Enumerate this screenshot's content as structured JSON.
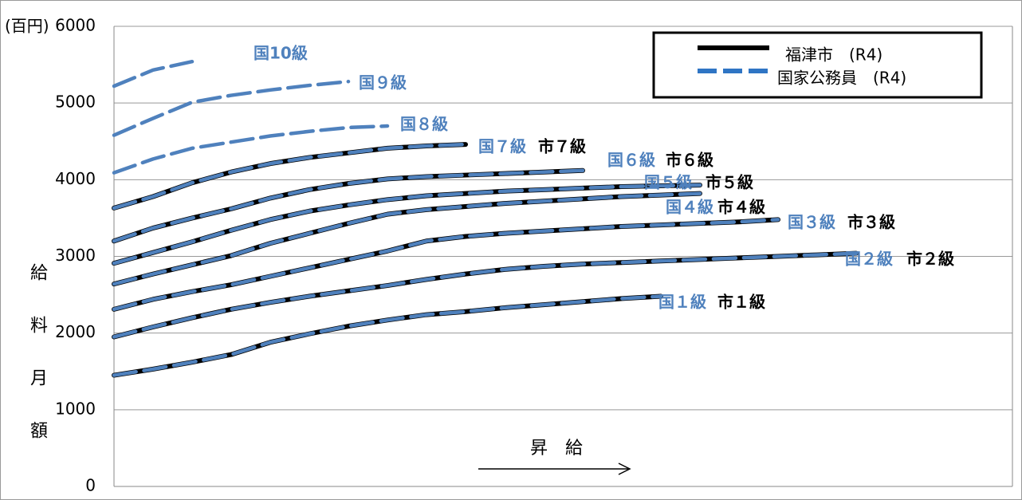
{
  "chart_data": {
    "type": "line",
    "y_unit_label": "(百円)",
    "y_label": "給料月額",
    "annotation": "昇　給",
    "categories": [
      null,
      null,
      null,
      null,
      null,
      null,
      null,
      null,
      null,
      null,
      null,
      null,
      null,
      null,
      null,
      null,
      null,
      null,
      null,
      null,
      null,
      null,
      null,
      null
    ],
    "ylim": [
      0,
      6000
    ],
    "yticks": [
      0,
      1000,
      2000,
      3000,
      4000,
      5000,
      6000
    ],
    "grid": true,
    "legend_position": "top-right",
    "legend": [
      {
        "name": "福津市　(R4)",
        "color": "#000000",
        "dashed": false
      },
      {
        "name": "国家公務員　(R4)",
        "color": "#4f81bd",
        "dashed": true
      }
    ],
    "series": [
      {
        "name": "市１級",
        "legend": 0,
        "values": [
          1450,
          1530,
          1620,
          1720,
          1880,
          1990,
          2090,
          2170,
          2240,
          2280,
          2330,
          2370,
          2410,
          2450,
          2480,
          null,
          null,
          null,
          null,
          null,
          null,
          null,
          null,
          null
        ]
      },
      {
        "name": "市２級",
        "legend": 0,
        "values": [
          1950,
          2080,
          2200,
          2310,
          2400,
          2480,
          2550,
          2620,
          2700,
          2770,
          2830,
          2870,
          2900,
          2920,
          2940,
          2960,
          2980,
          3000,
          3020,
          3040,
          null,
          null,
          null,
          null
        ]
      },
      {
        "name": "市３級",
        "legend": 0,
        "values": [
          2310,
          2440,
          2540,
          2630,
          2740,
          2850,
          2960,
          3070,
          3200,
          3260,
          3300,
          3330,
          3360,
          3390,
          3410,
          3430,
          3450,
          3480,
          null,
          null,
          null,
          null,
          null,
          null
        ]
      },
      {
        "name": "市４級",
        "legend": 0,
        "values": [
          2640,
          2770,
          2890,
          3010,
          3170,
          3300,
          3430,
          3550,
          3610,
          3650,
          3690,
          3720,
          3750,
          3780,
          3800,
          3820,
          null,
          null,
          null,
          null,
          null,
          null,
          null,
          null
        ]
      },
      {
        "name": "市５級",
        "legend": 0,
        "values": [
          2910,
          3050,
          3190,
          3340,
          3480,
          3590,
          3670,
          3740,
          3790,
          3820,
          3850,
          3870,
          3890,
          3910,
          3920,
          3930,
          null,
          null,
          null,
          null,
          null,
          null,
          null,
          null
        ]
      },
      {
        "name": "市６級",
        "legend": 0,
        "values": [
          3200,
          3370,
          3500,
          3620,
          3760,
          3870,
          3950,
          4010,
          4040,
          4060,
          4080,
          4100,
          4120,
          null,
          null,
          null,
          null,
          null,
          null,
          null,
          null,
          null,
          null,
          null
        ]
      },
      {
        "name": "市７級",
        "legend": 0,
        "values": [
          3630,
          3780,
          3960,
          4100,
          4210,
          4290,
          4350,
          4410,
          4440,
          4460,
          null,
          null,
          null,
          null,
          null,
          null,
          null,
          null,
          null,
          null,
          null,
          null,
          null,
          null
        ]
      },
      {
        "name": "国１級",
        "legend": 1,
        "values": [
          1450,
          1530,
          1620,
          1720,
          1880,
          1990,
          2090,
          2170,
          2240,
          2280,
          2330,
          2370,
          2410,
          2450,
          2480,
          null,
          null,
          null,
          null,
          null,
          null,
          null,
          null,
          null
        ]
      },
      {
        "name": "国２級",
        "legend": 1,
        "values": [
          1950,
          2080,
          2200,
          2310,
          2400,
          2480,
          2550,
          2620,
          2700,
          2770,
          2830,
          2870,
          2900,
          2920,
          2940,
          2960,
          2980,
          3000,
          3020,
          3040,
          null,
          null,
          null,
          null
        ]
      },
      {
        "name": "国３級",
        "legend": 1,
        "values": [
          2310,
          2440,
          2540,
          2630,
          2740,
          2850,
          2960,
          3070,
          3200,
          3260,
          3300,
          3330,
          3360,
          3390,
          3410,
          3430,
          3450,
          3480,
          null,
          null,
          null,
          null,
          null,
          null
        ]
      },
      {
        "name": "国４級",
        "legend": 1,
        "values": [
          2640,
          2770,
          2890,
          3010,
          3170,
          3300,
          3430,
          3550,
          3610,
          3650,
          3690,
          3720,
          3750,
          3780,
          3800,
          3820,
          null,
          null,
          null,
          null,
          null,
          null,
          null,
          null
        ]
      },
      {
        "name": "国５級",
        "legend": 1,
        "values": [
          2910,
          3050,
          3190,
          3340,
          3480,
          3590,
          3670,
          3740,
          3790,
          3820,
          3850,
          3870,
          3890,
          3910,
          3920,
          3930,
          null,
          null,
          null,
          null,
          null,
          null,
          null,
          null
        ]
      },
      {
        "name": "国６級",
        "legend": 1,
        "values": [
          3200,
          3370,
          3500,
          3620,
          3760,
          3870,
          3950,
          4010,
          4040,
          4060,
          4080,
          4100,
          4120,
          null,
          null,
          null,
          null,
          null,
          null,
          null,
          null,
          null,
          null,
          null
        ]
      },
      {
        "name": "国７級",
        "legend": 1,
        "values": [
          3630,
          3780,
          3960,
          4100,
          4210,
          4290,
          4350,
          4410,
          4440,
          4460,
          null,
          null,
          null,
          null,
          null,
          null,
          null,
          null,
          null,
          null,
          null,
          null,
          null,
          null
        ]
      },
      {
        "name": "国８級",
        "legend": 1,
        "values": [
          4090,
          4270,
          4410,
          4490,
          4570,
          4630,
          4680,
          4700,
          null,
          null,
          null,
          null,
          null,
          null,
          null,
          null,
          null,
          null,
          null,
          null,
          null,
          null,
          null,
          null
        ]
      },
      {
        "name": "国９級",
        "legend": 1,
        "values": [
          4580,
          4800,
          5010,
          5100,
          5170,
          5230,
          5280,
          null,
          null,
          null,
          null,
          null,
          null,
          null,
          null,
          null,
          null,
          null,
          null,
          null,
          null,
          null,
          null,
          null
        ]
      },
      {
        "name": "国10級",
        "legend": 1,
        "values": [
          5220,
          5430,
          5540,
          null,
          null,
          null,
          null,
          null,
          null,
          null,
          null,
          null,
          null,
          null,
          null,
          null,
          null,
          null,
          null,
          null,
          null,
          null,
          null,
          null
        ]
      }
    ]
  }
}
